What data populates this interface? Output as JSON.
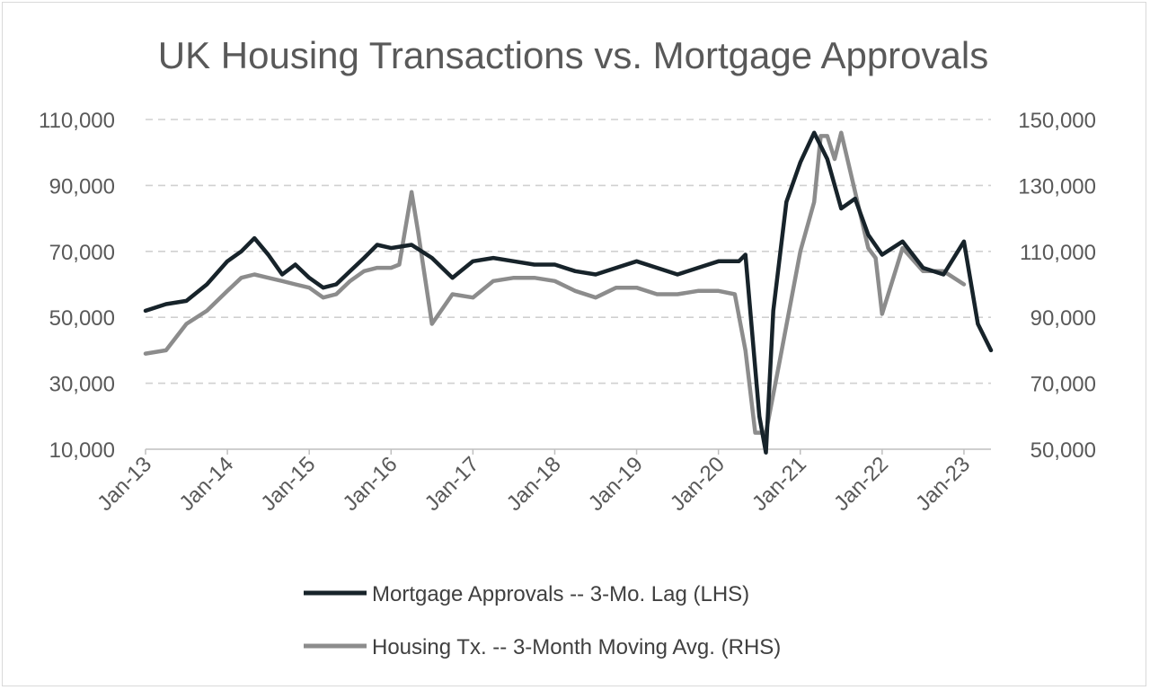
{
  "colors": {
    "mortgage": "#17232a",
    "housing": "#8c8c8c",
    "text": "#595959",
    "grid": "#d0d0d0"
  },
  "chart_data": {
    "type": "line",
    "title": "UK Housing Transactions vs. Mortgage Approvals",
    "x_tick_labels": [
      "Jan-13",
      "Jan-14",
      "Jan-15",
      "Jan-16",
      "Jan-17",
      "Jan-18",
      "Jan-19",
      "Jan-20",
      "Jan-21",
      "Jan-22",
      "Jan-23"
    ],
    "left_axis": {
      "ylim": [
        10000,
        110000
      ],
      "ticks": [
        10000,
        30000,
        50000,
        70000,
        90000,
        110000
      ],
      "tick_labels": [
        "10,000",
        "30,000",
        "50,000",
        "70,000",
        "90,000",
        "110,000"
      ]
    },
    "right_axis": {
      "ylim": [
        50000,
        150000
      ],
      "ticks": [
        50000,
        70000,
        90000,
        110000,
        130000,
        150000
      ],
      "tick_labels": [
        "50,000",
        "70,000",
        "90,000",
        "110,000",
        "130,000",
        "150,000"
      ]
    },
    "grid": true,
    "legend_position": "bottom",
    "series": [
      {
        "name": "Mortgage Approvals -- 3-Mo. Lag (LHS)",
        "axis": "left",
        "x": [
          2013.0,
          2013.25,
          2013.5,
          2013.75,
          2014.0,
          2014.17,
          2014.33,
          2014.5,
          2014.67,
          2014.83,
          2015.0,
          2015.17,
          2015.33,
          2015.5,
          2015.67,
          2015.83,
          2016.0,
          2016.25,
          2016.5,
          2016.75,
          2017.0,
          2017.25,
          2017.5,
          2017.75,
          2018.0,
          2018.25,
          2018.5,
          2018.75,
          2019.0,
          2019.25,
          2019.5,
          2019.75,
          2020.0,
          2020.25,
          2020.33,
          2020.5,
          2020.58,
          2020.67,
          2020.83,
          2021.0,
          2021.17,
          2021.33,
          2021.5,
          2021.67,
          2021.83,
          2022.0,
          2022.25,
          2022.5,
          2022.75,
          2023.0,
          2023.17,
          2023.33
        ],
        "values": [
          52000,
          54000,
          55000,
          60000,
          67000,
          70000,
          74000,
          69000,
          63000,
          66000,
          62000,
          59000,
          60000,
          64000,
          68000,
          72000,
          71000,
          72000,
          68000,
          62000,
          67000,
          68000,
          67000,
          66000,
          66000,
          64000,
          63000,
          65000,
          67000,
          65000,
          63000,
          65000,
          67000,
          67000,
          69000,
          20000,
          9000,
          52000,
          85000,
          97000,
          106000,
          98000,
          83000,
          86000,
          75000,
          69000,
          73000,
          65000,
          63000,
          73000,
          48000,
          40000
        ]
      },
      {
        "name": "Housing Tx. -- 3-Month Moving Avg. (RHS)",
        "axis": "right",
        "x": [
          2013.0,
          2013.25,
          2013.5,
          2013.75,
          2014.0,
          2014.17,
          2014.33,
          2014.5,
          2014.67,
          2014.83,
          2015.0,
          2015.17,
          2015.33,
          2015.5,
          2015.67,
          2015.83,
          2016.0,
          2016.1,
          2016.25,
          2016.33,
          2016.5,
          2016.75,
          2017.0,
          2017.25,
          2017.5,
          2017.75,
          2018.0,
          2018.25,
          2018.5,
          2018.75,
          2019.0,
          2019.25,
          2019.5,
          2019.75,
          2020.0,
          2020.2,
          2020.33,
          2020.45,
          2020.58,
          2020.75,
          2021.0,
          2021.17,
          2021.25,
          2021.33,
          2021.42,
          2021.5,
          2021.67,
          2021.83,
          2021.92,
          2022.0,
          2022.25,
          2022.5,
          2022.75,
          2023.0
        ],
        "values": [
          79000,
          80000,
          88000,
          92000,
          98000,
          102000,
          103000,
          102000,
          101000,
          100000,
          99000,
          96000,
          97000,
          101000,
          104000,
          105000,
          105000,
          106000,
          128000,
          116000,
          88000,
          97000,
          96000,
          101000,
          102000,
          102000,
          101000,
          98000,
          96000,
          99000,
          99000,
          97000,
          97000,
          98000,
          98000,
          97000,
          80000,
          55000,
          55000,
          77000,
          110000,
          125000,
          145000,
          145000,
          138000,
          146000,
          128000,
          111000,
          108000,
          91000,
          111000,
          104000,
          104000,
          100000
        ]
      }
    ]
  }
}
